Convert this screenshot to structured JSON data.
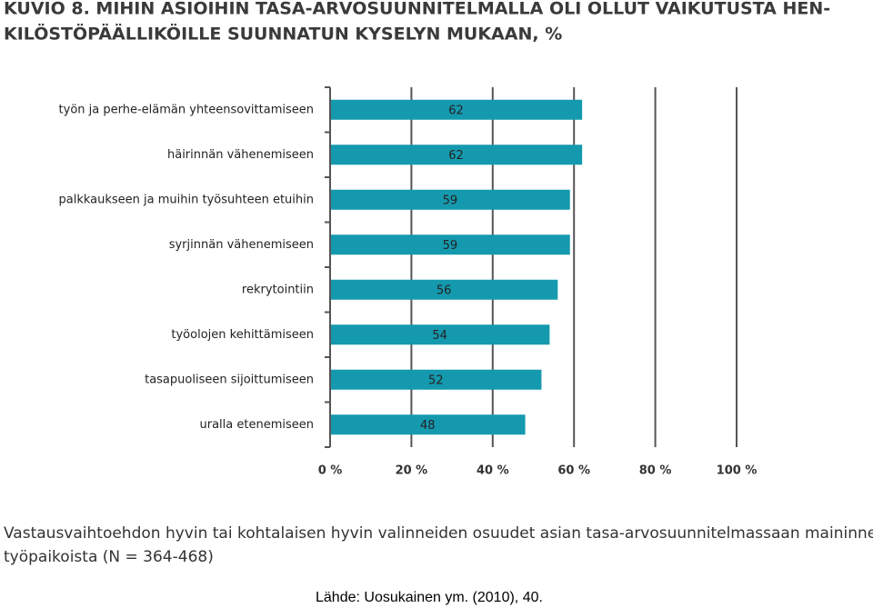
{
  "chart_data": {
    "type": "barh",
    "title": [
      "KUVIO 8. MIHIN ASIOIHIN TASA-ARVOSUUNNITELMALLA OLI OLLUT VAIKUTUSTA HEN-",
      "KILÖSTÖPÄÄLLIKÖILLE SUUNNATUN KYSELYN MUKAAN, %"
    ],
    "categories": [
      "työn ja perhe-elämän yhteensovittamiseen",
      "häirinnän vähenemiseen",
      "palkkaukseen ja muihin työsuhteen etuihin",
      "syrjinnän vähenemiseen",
      "rekrytointiin",
      "työolojen kehittämiseen",
      "tasapuoliseen sijoittumiseen",
      "uralla etenemiseen"
    ],
    "values": [
      62,
      62,
      59,
      59,
      56,
      54,
      52,
      48
    ],
    "color": "#1599ae",
    "xlim": [
      0,
      100
    ],
    "xticks": [
      {
        "value": 0,
        "label": "0 %"
      },
      {
        "value": 20,
        "label": "20 %"
      },
      {
        "value": 40,
        "label": "40 %"
      },
      {
        "value": 60,
        "label": "60 %"
      },
      {
        "value": 80,
        "label": "80 %"
      },
      {
        "value": 100,
        "label": "100 %"
      }
    ],
    "grid": true,
    "note": [
      "Vastausvaihtoehdon hyvin tai kohtalaisen hyvin valinneiden osuudet asian tasa-arvosuunnitelmassaan maininneista",
      "työpaikoista (N = 364-468)"
    ],
    "source": "Lähde: Uosukainen ym. (2010), 40."
  }
}
